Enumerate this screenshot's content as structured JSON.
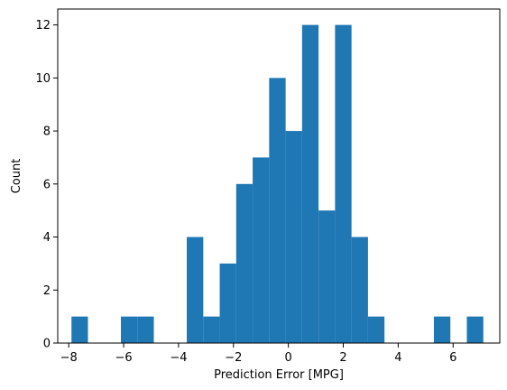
{
  "chart_data": {
    "type": "bar",
    "title": "",
    "xlabel": "Prediction Error [MPG]",
    "ylabel": "Count",
    "xlim": [
      -8.4,
      7.7
    ],
    "ylim": [
      0,
      12.6
    ],
    "grid": false,
    "legend": "none",
    "bin_width": 0.6,
    "bins": [
      {
        "x0": -7.9,
        "x1": -7.3,
        "count": 1
      },
      {
        "x0": -7.3,
        "x1": -6.7,
        "count": 0
      },
      {
        "x0": -6.7,
        "x1": -6.1,
        "count": 0
      },
      {
        "x0": -6.1,
        "x1": -5.5,
        "count": 1
      },
      {
        "x0": -5.5,
        "x1": -4.9,
        "count": 1
      },
      {
        "x0": -4.9,
        "x1": -4.3,
        "count": 0
      },
      {
        "x0": -4.3,
        "x1": -3.7,
        "count": 0
      },
      {
        "x0": -3.7,
        "x1": -3.1,
        "count": 4
      },
      {
        "x0": -3.1,
        "x1": -2.5,
        "count": 1
      },
      {
        "x0": -2.5,
        "x1": -1.9,
        "count": 3
      },
      {
        "x0": -1.9,
        "x1": -1.3,
        "count": 6
      },
      {
        "x0": -1.3,
        "x1": -0.7,
        "count": 7
      },
      {
        "x0": -0.7,
        "x1": -0.1,
        "count": 10
      },
      {
        "x0": -0.1,
        "x1": 0.5,
        "count": 8
      },
      {
        "x0": 0.5,
        "x1": 1.1,
        "count": 12
      },
      {
        "x0": 1.1,
        "x1": 1.7,
        "count": 5
      },
      {
        "x0": 1.7,
        "x1": 2.3,
        "count": 12
      },
      {
        "x0": 2.3,
        "x1": 2.9,
        "count": 4
      },
      {
        "x0": 2.9,
        "x1": 3.5,
        "count": 1
      },
      {
        "x0": 3.5,
        "x1": 4.1,
        "count": 0
      },
      {
        "x0": 4.1,
        "x1": 4.7,
        "count": 0
      },
      {
        "x0": 4.7,
        "x1": 5.3,
        "count": 0
      },
      {
        "x0": 5.3,
        "x1": 5.9,
        "count": 1
      },
      {
        "x0": 5.9,
        "x1": 6.5,
        "count": 0
      },
      {
        "x0": 6.5,
        "x1": 7.1,
        "count": 1
      }
    ],
    "xticks": [
      -8,
      -6,
      -4,
      -2,
      0,
      2,
      4,
      6
    ],
    "xtick_labels": [
      "−8",
      "−6",
      "−4",
      "−2",
      "0",
      "2",
      "4",
      "6"
    ],
    "yticks": [
      0,
      2,
      4,
      6,
      8,
      10,
      12
    ],
    "ytick_labels": [
      "0",
      "2",
      "4",
      "6",
      "8",
      "10",
      "12"
    ]
  },
  "colors": {
    "bar": "#1f77b4",
    "axis": "#000000",
    "background": "#ffffff"
  }
}
